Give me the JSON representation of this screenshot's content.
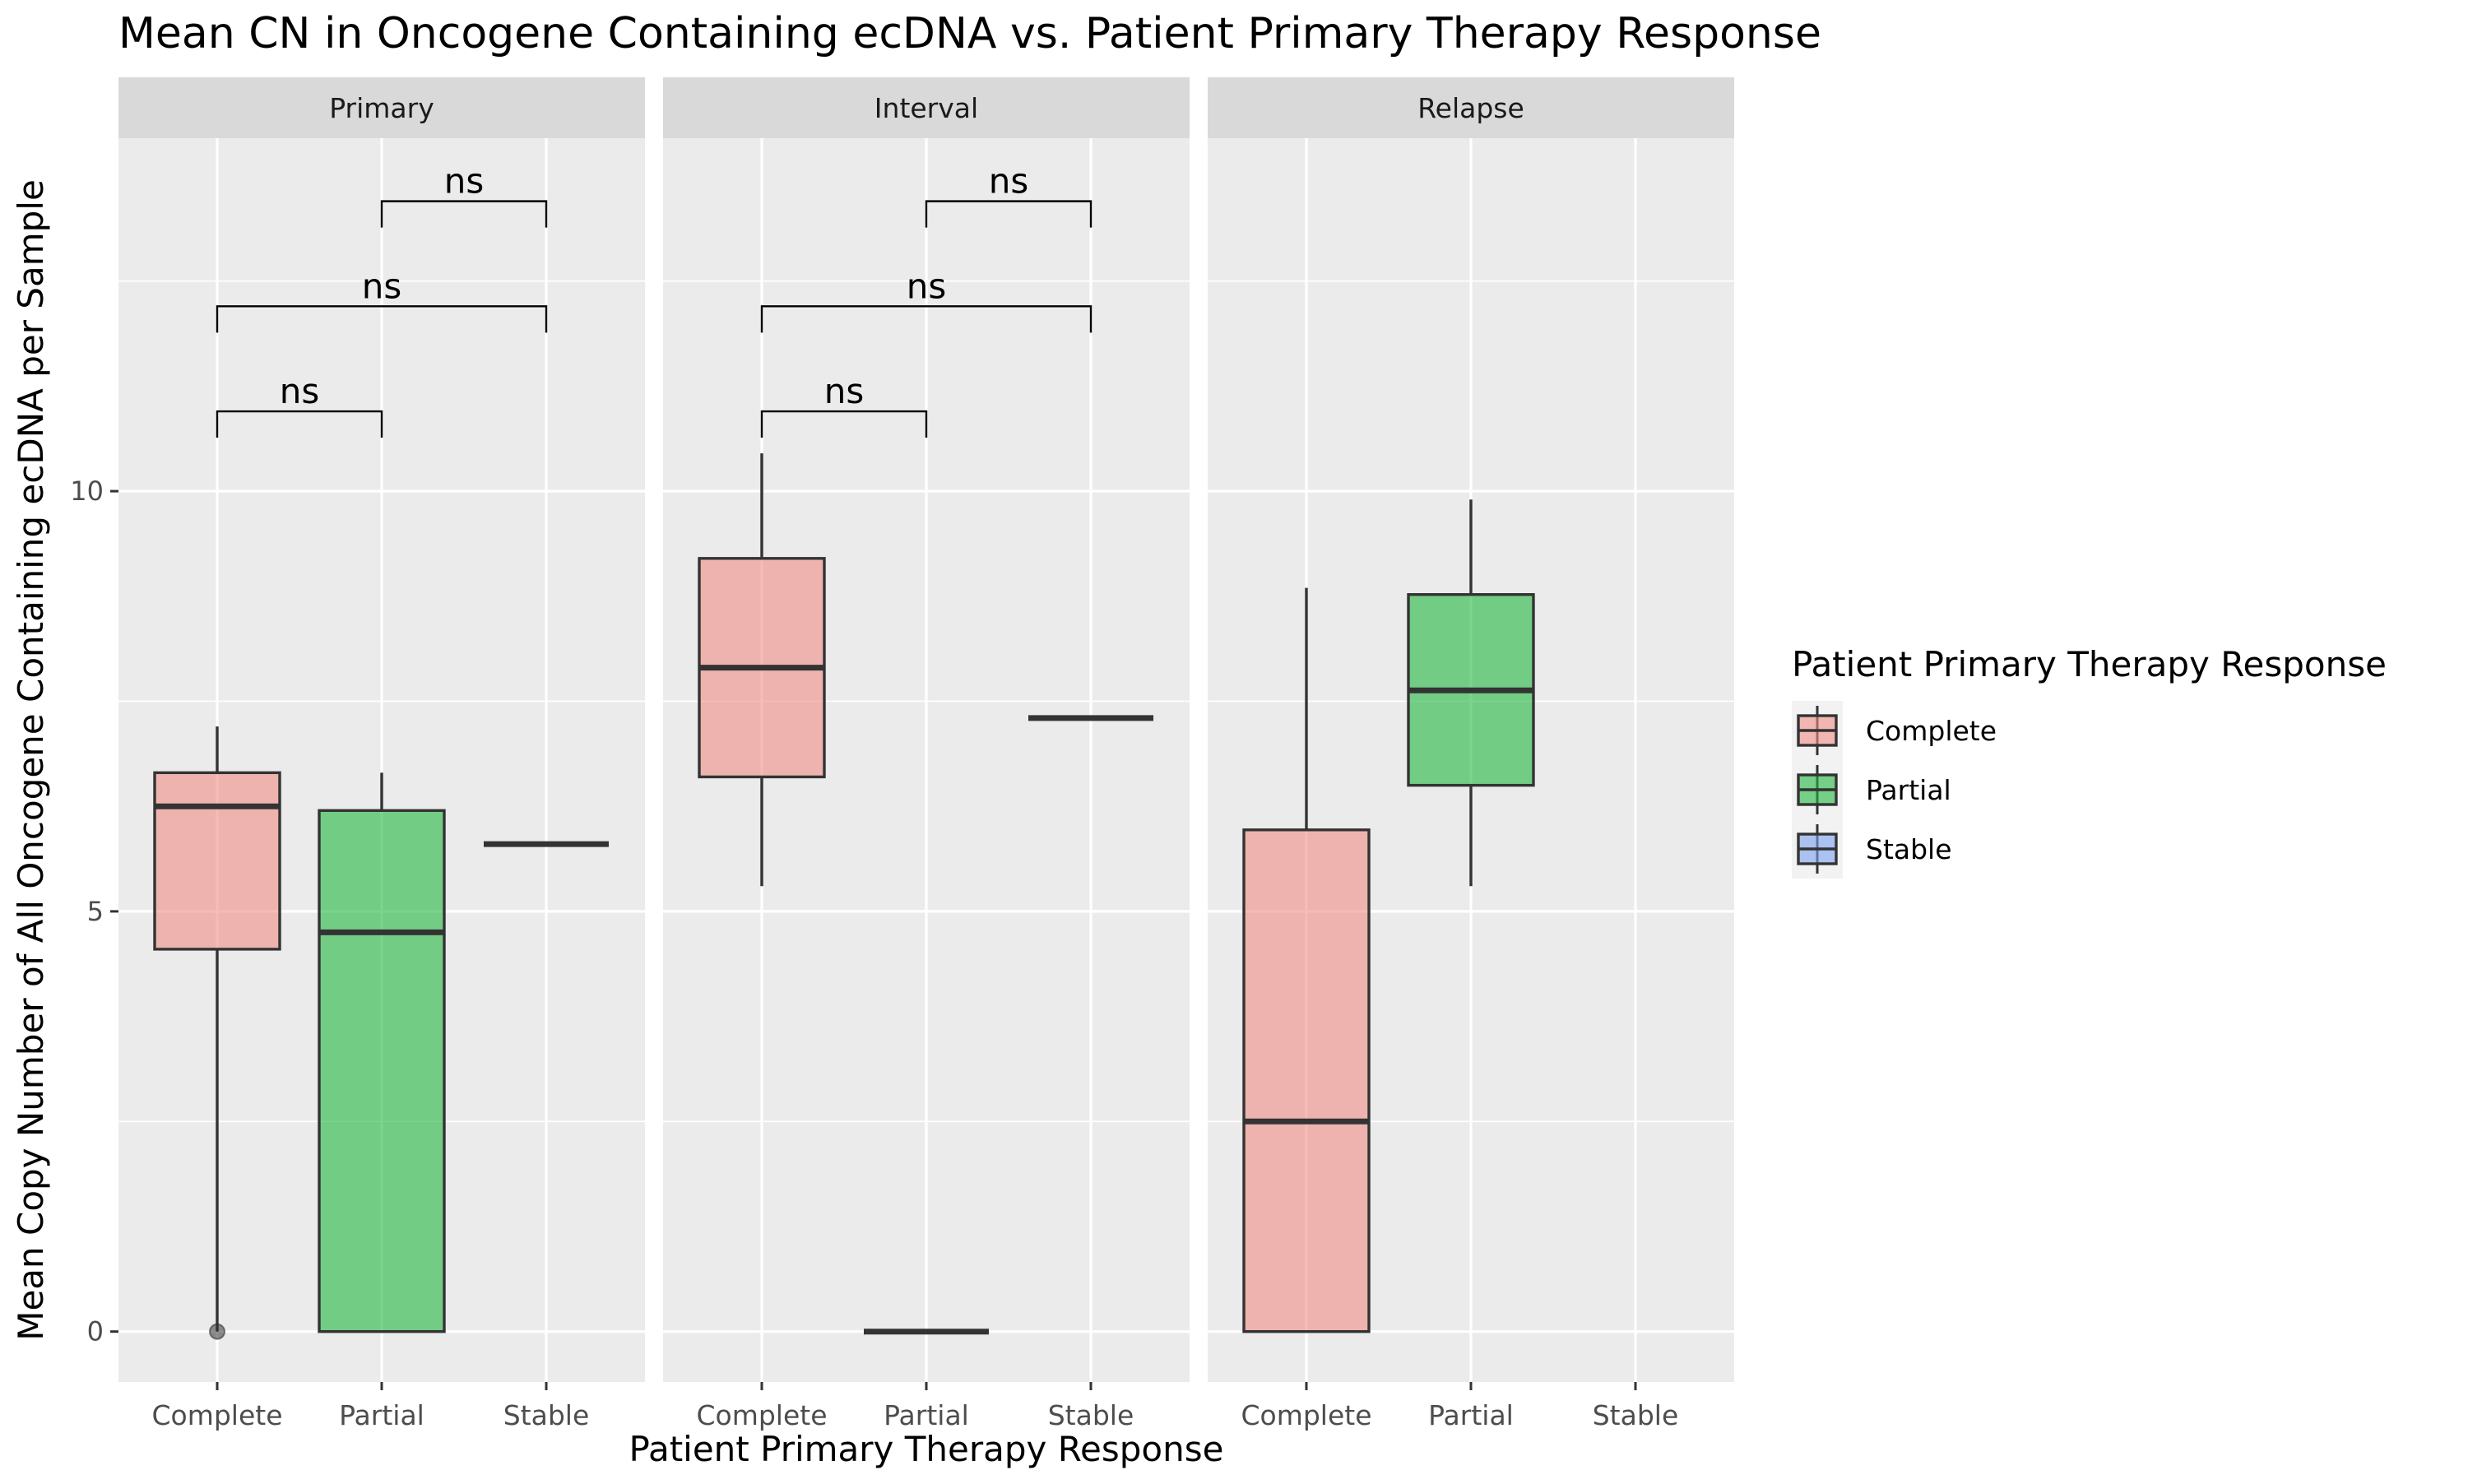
{
  "chart_data": {
    "type": "boxplot",
    "title": "Mean CN in Oncogene Containing ecDNA vs. Patient Primary Therapy Response",
    "xlabel": "Patient Primary Therapy Response",
    "ylabel": "Mean Copy Number of All Oncogene Containing ecDNA per Sample",
    "ylim": [
      -0.6,
      14.2
    ],
    "yticks": [
      0,
      5,
      10
    ],
    "categories": [
      "Complete",
      "Partial",
      "Stable"
    ],
    "grid": true,
    "legend": {
      "title": "Patient Primary Therapy Response",
      "position": "right",
      "entries": [
        {
          "label": "Complete",
          "color": "#F08E86"
        },
        {
          "label": "Partial",
          "color": "#22B840"
        },
        {
          "label": "Stable",
          "color": "#7CA2F0"
        }
      ]
    },
    "colors": {
      "panel_bg": "#EBEBEB",
      "strip_bg": "#D9D9D9",
      "grid": "#FFFFFF",
      "box_stroke": "#333333"
    },
    "facets": [
      {
        "label": "Primary",
        "boxes": [
          {
            "category": "Complete",
            "lower": 0,
            "q1": 4.55,
            "median": 6.25,
            "q3": 6.65,
            "upper": 7.2,
            "outliers": [
              0
            ]
          },
          {
            "category": "Partial",
            "lower": 0,
            "q1": 0,
            "median": 4.75,
            "q3": 6.2,
            "upper": 6.65,
            "outliers": []
          },
          {
            "category": "Stable",
            "lower": 5.8,
            "q1": 5.8,
            "median": 5.8,
            "q3": 5.8,
            "upper": 5.8,
            "outliers": []
          }
        ],
        "comparisons": [
          {
            "from": "Complete",
            "to": "Partial",
            "y": 10.95,
            "label": "ns"
          },
          {
            "from": "Complete",
            "to": "Stable",
            "y": 12.2,
            "label": "ns"
          },
          {
            "from": "Partial",
            "to": "Stable",
            "y": 13.45,
            "label": "ns"
          }
        ]
      },
      {
        "label": "Interval",
        "boxes": [
          {
            "category": "Complete",
            "lower": 5.3,
            "q1": 6.6,
            "median": 7.9,
            "q3": 9.2,
            "upper": 10.45,
            "outliers": []
          },
          {
            "category": "Partial",
            "lower": 0,
            "q1": 0,
            "median": 0,
            "q3": 0,
            "upper": 0,
            "outliers": []
          },
          {
            "category": "Stable",
            "lower": 7.3,
            "q1": 7.3,
            "median": 7.3,
            "q3": 7.3,
            "upper": 7.3,
            "outliers": []
          }
        ],
        "comparisons": [
          {
            "from": "Complete",
            "to": "Partial",
            "y": 10.95,
            "label": "ns"
          },
          {
            "from": "Complete",
            "to": "Stable",
            "y": 12.2,
            "label": "ns"
          },
          {
            "from": "Partial",
            "to": "Stable",
            "y": 13.45,
            "label": "ns"
          }
        ]
      },
      {
        "label": "Relapse",
        "boxes": [
          {
            "category": "Complete",
            "lower": 0,
            "q1": 0,
            "median": 2.5,
            "q3": 5.97,
            "upper": 8.85,
            "outliers": []
          },
          {
            "category": "Partial",
            "lower": 5.3,
            "q1": 6.5,
            "median": 7.63,
            "q3": 8.77,
            "upper": 9.9,
            "outliers": []
          }
        ],
        "comparisons": []
      }
    ]
  }
}
